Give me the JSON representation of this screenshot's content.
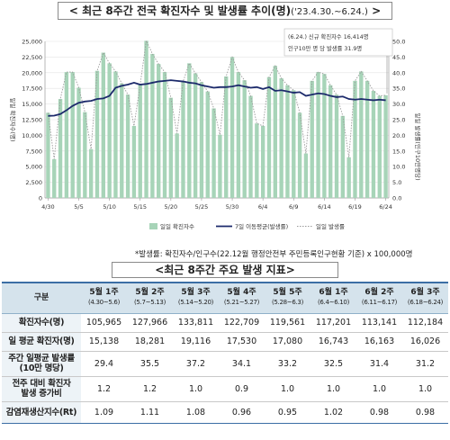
{
  "title": "< 최근 8주간 전국 확진자수 및 발생률 추이",
  "title_tail": "(명)",
  "title_range": "('23.4.30.~6.24.)",
  "title_close": ">",
  "chart_data": {
    "type": "bar",
    "y_left_label": "일일 확진자수(명)",
    "y_right_label": "일일 발생률(인구10만명당)",
    "y_left_ticks": [
      "0",
      "2,500",
      "5,000",
      "7,500",
      "10,000",
      "12,500",
      "15,000",
      "17,500",
      "20,000",
      "22,500",
      "25,000"
    ],
    "y_right_ticks": [
      "0.0",
      "5.0",
      "10.0",
      "15.0",
      "20.0",
      "25.0",
      "30.0",
      "35.0",
      "40.0",
      "45.0",
      "50.0"
    ],
    "ylim_left": [
      0,
      25000
    ],
    "ylim_right": [
      0,
      50
    ],
    "x_tick_labels": [
      "4/30",
      "5/5",
      "5/10",
      "5/15",
      "5/20",
      "5/25",
      "5/30",
      "6/4",
      "6/9",
      "6/14",
      "6/19",
      "6/24"
    ],
    "x_tick_index": [
      0,
      5,
      10,
      15,
      20,
      25,
      30,
      35,
      40,
      45,
      50,
      55
    ],
    "daily_cases": [
      13600,
      6200,
      15800,
      20100,
      20100,
      17600,
      13700,
      7800,
      20300,
      23200,
      21500,
      20200,
      18300,
      16500,
      11500,
      18100,
      25100,
      23000,
      21400,
      20100,
      16000,
      10300,
      18600,
      21500,
      19900,
      18500,
      17000,
      14300,
      10100,
      19400,
      22500,
      20100,
      18800,
      16300,
      11900,
      11500,
      19300,
      21100,
      19100,
      18000,
      17200,
      13600,
      7100,
      18700,
      20100,
      19800,
      18000,
      16500,
      13100,
      6500,
      18700,
      20200,
      18700,
      17100,
      16300,
      16400
    ],
    "seven_day_avg": [
      13100,
      13150,
      13400,
      14000,
      14700,
      15200,
      15400,
      15500,
      15800,
      15900,
      16300,
      17600,
      17900,
      18100,
      18400,
      18100,
      18200,
      18400,
      18600,
      18700,
      18800,
      18700,
      18600,
      18400,
      18300,
      18000,
      17800,
      17600,
      17700,
      17700,
      17800,
      18000,
      17800,
      17600,
      17700,
      17400,
      17700,
      17100,
      17200,
      17000,
      16800,
      16900,
      16300,
      16500,
      16700,
      16600,
      16300,
      16100,
      16200,
      15800,
      15700,
      15800,
      15700,
      15600,
      15700,
      15600
    ],
    "series": [
      {
        "name": "일일 확진자수"
      },
      {
        "name": "7일 이동평균(발생률)"
      },
      {
        "name": "일일 발생률"
      }
    ],
    "callout_line1": "(6.24.) 신규 확진자수 16,414명",
    "callout_line2": "인구10만 명 당 발생률 31.9명"
  },
  "note": "*발생률: 확진자수/인구수(22.12월 행정안전부 주민등록인구현황 기준) x 100,000명",
  "section2_title": "<최근 8주간 주요 발생 지표>",
  "table": {
    "corner": "구분",
    "weeks": [
      {
        "label": "5월 1주",
        "range": "(4.30~5.6)"
      },
      {
        "label": "5월 2주",
        "range": "(5.7~5.13)"
      },
      {
        "label": "5월 3주",
        "range": "(5.14~5.20)"
      },
      {
        "label": "5월 4주",
        "range": "(5.21~5.27)"
      },
      {
        "label": "5월 5주",
        "range": "(5.28~6.3)"
      },
      {
        "label": "6월 1주",
        "range": "(6.4~6.10)"
      },
      {
        "label": "6월 2주",
        "range": "(6.11~6.17)"
      },
      {
        "label": "6월 3주",
        "range": "(6.18~6.24)"
      }
    ],
    "rows": [
      {
        "label": "확진자수(명)",
        "values": [
          "105,965",
          "127,966",
          "133,811",
          "122,709",
          "119,561",
          "117,201",
          "113,141",
          "112,184"
        ]
      },
      {
        "label": "일 평균 확진자(명)",
        "values": [
          "15,138",
          "18,281",
          "19,116",
          "17,530",
          "17,080",
          "16,743",
          "16,163",
          "16,026"
        ]
      },
      {
        "label": "주간 일평균 발생률(10만 명당)",
        "values": [
          "29.4",
          "35.5",
          "37.2",
          "34.1",
          "33.2",
          "32.5",
          "31.4",
          "31.2"
        ]
      },
      {
        "label": "전주 대비 확진자 발생 증가비",
        "values": [
          "1.2",
          "1.2",
          "1.0",
          "0.9",
          "1.0",
          "1.0",
          "1.0",
          "1.0"
        ]
      },
      {
        "label": "감염재생산지수(Rt)",
        "values": [
          "1.09",
          "1.11",
          "1.08",
          "0.96",
          "0.95",
          "1.02",
          "0.98",
          "0.98"
        ]
      }
    ]
  },
  "colors": {
    "bar": "#a7d4b8",
    "avg_line": "#1c2a6b",
    "rate_line": "#9a9a9a",
    "header_bg": "#d5e3ec",
    "accent": "#3b6ea5"
  }
}
